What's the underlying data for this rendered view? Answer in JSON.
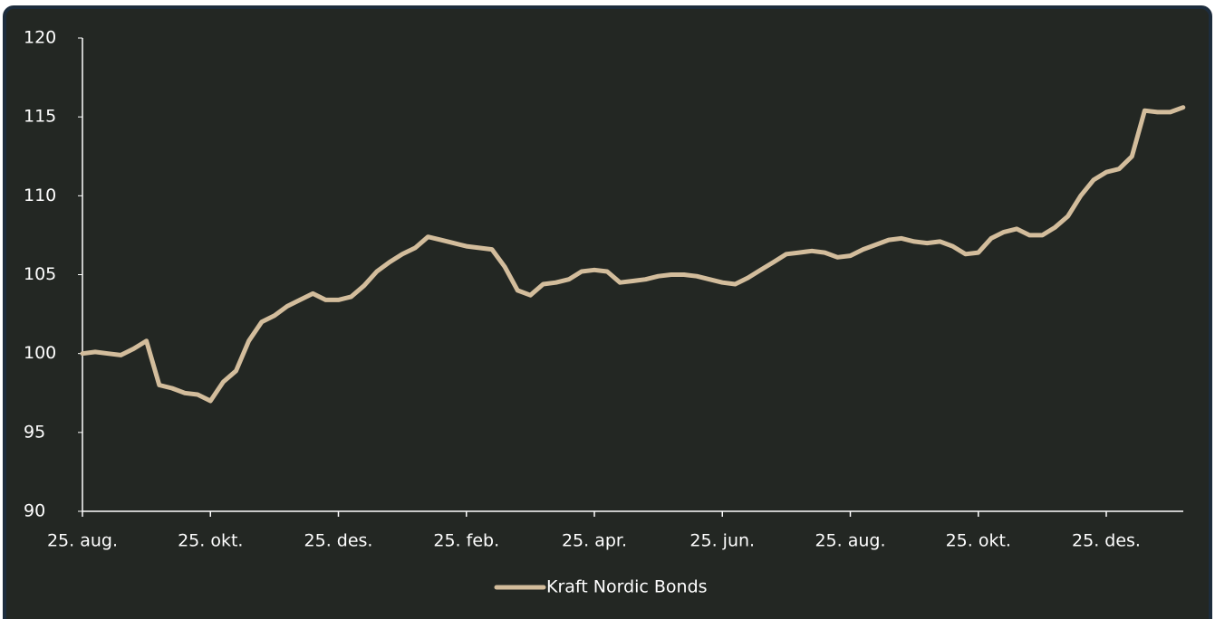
{
  "chart_data": {
    "type": "line",
    "categories": [
      "25. aug.",
      null,
      null,
      null,
      null,
      null,
      null,
      null,
      null,
      null,
      "25. okt.",
      null,
      null,
      null,
      null,
      null,
      null,
      null,
      null,
      null,
      "25. des.",
      null,
      null,
      null,
      null,
      null,
      null,
      null,
      null,
      null,
      "25. feb.",
      null,
      null,
      null,
      null,
      null,
      null,
      null,
      null,
      null,
      "25. apr.",
      null,
      null,
      null,
      null,
      null,
      null,
      null,
      null,
      null,
      "25. jun.",
      null,
      null,
      null,
      null,
      null,
      null,
      null,
      null,
      null,
      "25. aug.",
      null,
      null,
      null,
      null,
      null,
      null,
      null,
      null,
      null,
      "25. okt.",
      null,
      null,
      null,
      null,
      null,
      null,
      null,
      null,
      null,
      "25. des.",
      null,
      null,
      null,
      null,
      null,
      null
    ],
    "series": [
      {
        "name": "Kraft Nordic Bonds",
        "color": "#d3bd9c",
        "values": [
          100.0,
          100.1,
          100.0,
          99.9,
          100.3,
          100.8,
          98.0,
          97.8,
          97.5,
          97.4,
          97.0,
          98.2,
          98.9,
          100.8,
          102.0,
          102.4,
          103.0,
          103.4,
          103.8,
          103.4,
          103.4,
          103.6,
          104.3,
          105.2,
          105.8,
          106.3,
          106.7,
          107.4,
          107.2,
          107.0,
          106.8,
          106.7,
          106.6,
          105.5,
          104.0,
          103.7,
          104.4,
          104.5,
          104.7,
          105.2,
          105.3,
          105.2,
          104.5,
          104.6,
          104.7,
          104.9,
          105.0,
          105.0,
          104.9,
          104.7,
          104.5,
          104.4,
          104.8,
          105.3,
          105.8,
          106.3,
          106.4,
          106.5,
          106.4,
          106.1,
          106.2,
          106.6,
          106.9,
          107.2,
          107.3,
          107.1,
          107.0,
          107.1,
          106.8,
          106.3,
          106.4,
          107.3,
          107.7,
          107.9,
          107.5,
          107.5,
          108.0,
          108.7,
          110.0,
          111.0,
          111.5,
          111.7,
          112.5,
          115.4,
          115.3,
          115.3,
          115.6
        ]
      }
    ],
    "ylim": [
      90,
      120
    ],
    "yticks": [
      90,
      95,
      100,
      105,
      110,
      115,
      120
    ],
    "legend": "bottom"
  }
}
